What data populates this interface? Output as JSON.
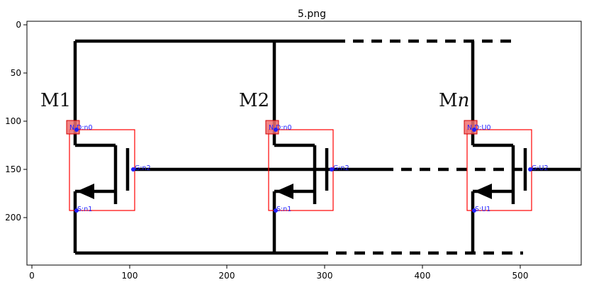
{
  "figure": {
    "title": "5.png",
    "x_ticks": [
      "0",
      "100",
      "200",
      "300",
      "400",
      "500"
    ],
    "y_ticks": [
      "0",
      "50",
      "100",
      "150",
      "200"
    ]
  },
  "circuit": {
    "transistors": [
      {
        "label": "M1",
        "label_italic_suffix": "",
        "node_tag": "N",
        "drain": "D:n0",
        "gate": "G:n2",
        "source": "S:n1"
      },
      {
        "label": "M2",
        "label_italic_suffix": "",
        "node_tag": "N",
        "drain": "D:n0",
        "gate": "G:n2",
        "source": "S:n1"
      },
      {
        "label": "M",
        "label_italic_suffix": "n",
        "node_tag": "N",
        "drain": "D:U0",
        "gate": "G:U2",
        "source": "S:U1"
      }
    ]
  },
  "colors": {
    "wire": "#000000",
    "box": "#ff0000",
    "badge": "#f07070",
    "pin": "#1f1fff"
  }
}
